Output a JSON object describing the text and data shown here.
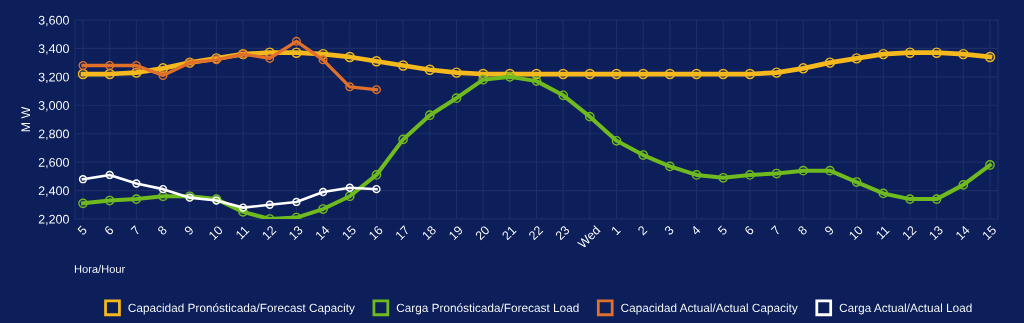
{
  "chart_data": {
    "type": "line",
    "xlabel": "Hora/Hour",
    "ylabel": "M W",
    "categories": [
      "5",
      "6",
      "7",
      "8",
      "9",
      "10",
      "11",
      "12",
      "13",
      "14",
      "15",
      "16",
      "17",
      "18",
      "19",
      "20",
      "21",
      "22",
      "23",
      "Wed",
      "1",
      "2",
      "3",
      "4",
      "5",
      "6",
      "7",
      "8",
      "9",
      "10",
      "11",
      "12",
      "13",
      "14",
      "15"
    ],
    "series": [
      {
        "name": "Capacidad Pronósticada/Forecast Capacity",
        "color": "#f5b91e",
        "values": [
          3220,
          3220,
          3230,
          3260,
          3300,
          3330,
          3360,
          3370,
          3370,
          3360,
          3340,
          3310,
          3280,
          3250,
          3230,
          3220,
          3220,
          3220,
          3220,
          3220,
          3220,
          3220,
          3220,
          3220,
          3220,
          3220,
          3230,
          3260,
          3300,
          3330,
          3360,
          3370,
          3370,
          3360,
          3340
        ]
      },
      {
        "name": "Carga Pronósticada/Forecast Load",
        "color": "#6fba1e",
        "values": [
          2310,
          2330,
          2340,
          2360,
          2360,
          2340,
          2250,
          2200,
          2210,
          2270,
          2360,
          2510,
          2760,
          2930,
          3050,
          3180,
          3200,
          3170,
          3070,
          2920,
          2750,
          2650,
          2570,
          2510,
          2490,
          2510,
          2520,
          2540,
          2540,
          2460,
          2380,
          2340,
          2340,
          2440,
          2580
        ]
      },
      {
        "name": "Capacidad Actual/Actual Capacity",
        "color": "#e0702a",
        "values": [
          3280,
          3280,
          3280,
          3210,
          3300,
          3320,
          3360,
          3330,
          3450,
          3320,
          3130,
          3110,
          null,
          null,
          null,
          null,
          null,
          null,
          null,
          null,
          null,
          null,
          null,
          null,
          null,
          null,
          null,
          null,
          null,
          null,
          null,
          null,
          null,
          null,
          null
        ]
      },
      {
        "name": "Carga Actual/Actual Load",
        "color": "#ffffff",
        "values": [
          2480,
          2510,
          2450,
          2410,
          2350,
          2330,
          2280,
          2300,
          2320,
          2390,
          2420,
          2410,
          null,
          null,
          null,
          null,
          null,
          null,
          null,
          null,
          null,
          null,
          null,
          null,
          null,
          null,
          null,
          null,
          null,
          null,
          null,
          null,
          null,
          null,
          null
        ]
      }
    ],
    "ylim": [
      2200,
      3600
    ],
    "yticks": [
      {
        "value": 2200,
        "label": "2,200"
      },
      {
        "value": 2400,
        "label": "2,400"
      },
      {
        "value": 2600,
        "label": "2,600"
      },
      {
        "value": 2800,
        "label": "2,800"
      },
      {
        "value": 3000,
        "label": "3,000"
      },
      {
        "value": 3200,
        "label": "3,200"
      },
      {
        "value": 3400,
        "label": "3,400"
      },
      {
        "value": 3600,
        "label": "3,600"
      }
    ],
    "grid": true,
    "legend": "bottom",
    "marker": "circle",
    "line_style": "solid"
  }
}
